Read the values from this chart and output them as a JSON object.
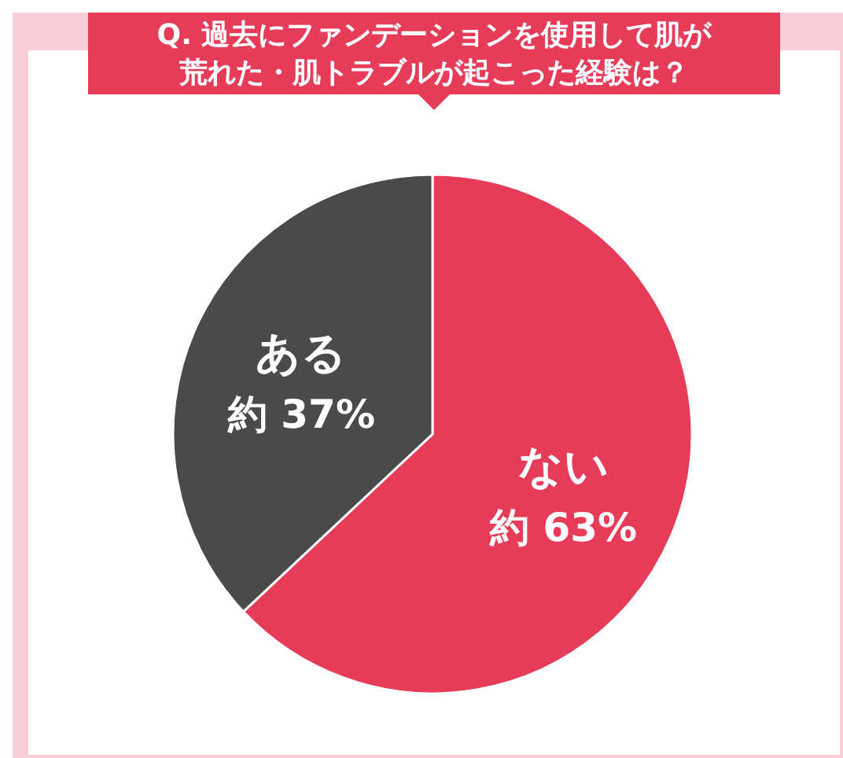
{
  "chart_data": {
    "type": "pie",
    "title": "Q. 過去にファンデーションを使用して肌が荒れた・肌トラブルが起こった経験は？",
    "categories": [
      "ない",
      "ある"
    ],
    "values": [
      63,
      37
    ],
    "colors": [
      "#e63c5a",
      "#4a4a4a"
    ],
    "value_labels": [
      "約 63%",
      "約 37%"
    ]
  }
}
